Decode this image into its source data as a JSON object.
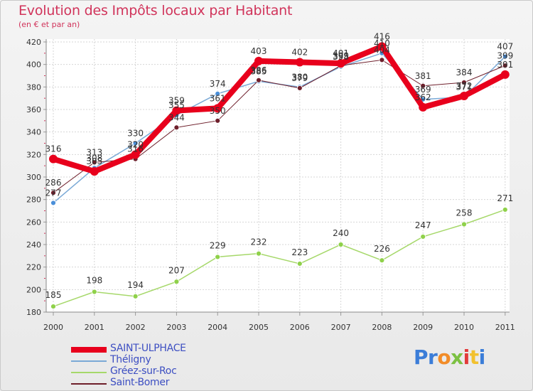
{
  "title": "Evolution des Impôts locaux par Habitant",
  "subtitle": "(en € et par an)",
  "logo": {
    "text": "Proxiti",
    "letters": [
      "P",
      "r",
      "o",
      "x",
      "i",
      "t",
      "i"
    ],
    "letter_colors": [
      "#3b7dd8",
      "#3b7dd8",
      "#f28c28",
      "#7cc142",
      "#e23b3b",
      "#f2c12e",
      "#3b7dd8"
    ]
  },
  "chart_data": {
    "type": "line",
    "title": "Evolution des Impôts locaux par Habitant",
    "subtitle": "(en € et par an)",
    "x": [
      "2000",
      "2001",
      "2002",
      "2003",
      "2004",
      "2005",
      "2006",
      "2007",
      "2008",
      "2009",
      "2010",
      "2011"
    ],
    "y_ticks": [
      180,
      200,
      220,
      240,
      260,
      280,
      300,
      320,
      340,
      360,
      380,
      400,
      420
    ],
    "ylim": [
      180,
      420
    ],
    "grid": true,
    "legend_position": "bottom-left",
    "series": [
      {
        "name": "SAINT-ULPHACE",
        "color": "#e8001c",
        "width": 8,
        "values": [
          316,
          305,
          320,
          359,
          361,
          403,
          402,
          401,
          416,
          362,
          372,
          391
        ],
        "labels": [
          "316",
          "305",
          "320",
          "359",
          "361",
          "403",
          "402",
          "401",
          "416",
          "362",
          "372",
          "391"
        ]
      },
      {
        "name": "Théligny",
        "color": "#7aa9d6",
        "width": 1.5,
        "values": [
          277,
          308,
          330,
          355,
          374,
          385,
          380,
          398,
          410,
          369,
          371,
          407
        ],
        "labels": [
          "277",
          "308",
          "330",
          "355",
          "374",
          "385",
          "380",
          "398",
          "410",
          "369",
          "371",
          "407"
        ]
      },
      {
        "name": "Gréez-sur-Roc",
        "color": "#a6d86a",
        "width": 1.5,
        "values": [
          185,
          198,
          194,
          207,
          229,
          232,
          223,
          240,
          226,
          247,
          258,
          271
        ],
        "labels": [
          "185",
          "198",
          "194",
          "207",
          "229",
          "232",
          "223",
          "240",
          "226",
          "247",
          "258",
          "271"
        ]
      },
      {
        "name": "Saint-Bomer",
        "color": "#6e1f2b",
        "width": 1,
        "values": [
          286,
          313,
          316,
          344,
          350,
          386,
          379,
          399,
          404,
          381,
          384,
          399
        ],
        "labels": [
          "286",
          "313",
          "316",
          "344",
          "350",
          "386",
          "379",
          "399",
          "404",
          "381",
          "384",
          "399"
        ]
      }
    ]
  }
}
